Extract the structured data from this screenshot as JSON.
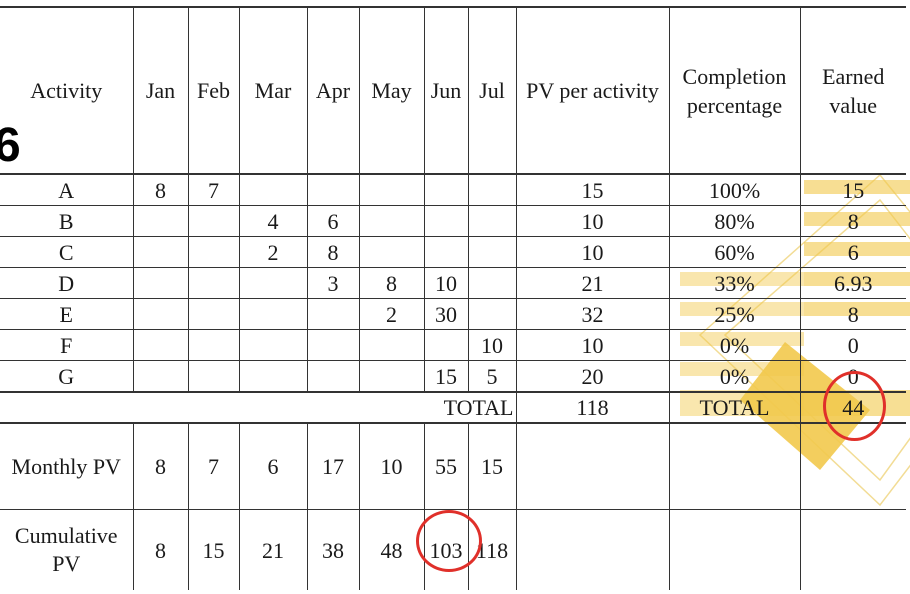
{
  "corner_mark": "6",
  "headers": {
    "activity": "Activity",
    "months": [
      "Jan",
      "Feb",
      "Mar",
      "Apr",
      "May",
      "Jun",
      "Jul"
    ],
    "pv_per_activity": "PV per activity",
    "completion": "Completion percentage",
    "earned_value": "Earned value"
  },
  "rows": [
    {
      "activity": "A",
      "months": [
        "8",
        "7",
        "",
        "",
        "",
        "",
        ""
      ],
      "pv": "15",
      "completion": "100%",
      "ev": "15"
    },
    {
      "activity": "B",
      "months": [
        "",
        "",
        "4",
        "6",
        "",
        "",
        ""
      ],
      "pv": "10",
      "completion": "80%",
      "ev": "8"
    },
    {
      "activity": "C",
      "months": [
        "",
        "",
        "2",
        "8",
        "",
        "",
        ""
      ],
      "pv": "10",
      "completion": "60%",
      "ev": "6"
    },
    {
      "activity": "D",
      "months": [
        "",
        "",
        "",
        "3",
        "8",
        "10",
        ""
      ],
      "pv": "21",
      "completion": "33%",
      "ev": "6.93"
    },
    {
      "activity": "E",
      "months": [
        "",
        "",
        "",
        "",
        "2",
        "30",
        ""
      ],
      "pv": "32",
      "completion": "25%",
      "ev": "8"
    },
    {
      "activity": "F",
      "months": [
        "",
        "",
        "",
        "",
        "",
        "",
        "10"
      ],
      "pv": "10",
      "completion": "0%",
      "ev": "0"
    },
    {
      "activity": "G",
      "months": [
        "",
        "",
        "",
        "",
        "",
        "15",
        "5"
      ],
      "pv": "20",
      "completion": "0%",
      "ev": "0"
    }
  ],
  "totals": {
    "label": "TOTAL",
    "pv": "118",
    "completion_label": "TOTAL",
    "ev": "44"
  },
  "monthly_pv": {
    "label": "Monthly PV",
    "values": [
      "8",
      "7",
      "6",
      "17",
      "10",
      "55",
      "15"
    ]
  },
  "cumulative_pv": {
    "label": "Cumulative PV",
    "values": [
      "8",
      "15",
      "21",
      "38",
      "48",
      "103",
      "118"
    ]
  },
  "colors": {
    "highlight": "#f2c94c",
    "circle": "#e0302a"
  }
}
